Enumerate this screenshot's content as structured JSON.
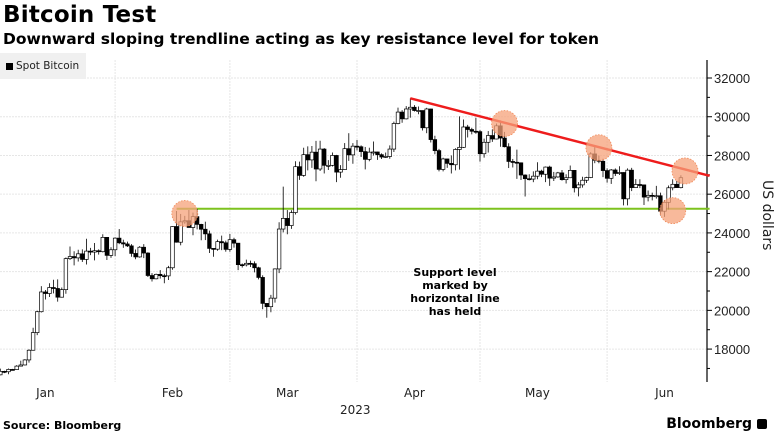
{
  "header": {
    "title": "Bitcoin Test",
    "subtitle": "Downward sloping trendline acting as key resistance level for token"
  },
  "footer": {
    "source": "Source: Bloomberg",
    "logo": "Bloomberg"
  },
  "chart_data": {
    "type": "candlestick",
    "title": "Bitcoin Test",
    "subtitle": "Downward sloping trendline acting as key resistance level for token",
    "legend": [
      {
        "name": "Spot Bitcoin",
        "color": "#000000"
      }
    ],
    "legend_placement": "top-left",
    "ylabel": "US dollars",
    "ylim": [
      16300,
      32930
    ],
    "yticks": [
      18000,
      20000,
      22000,
      24000,
      26000,
      28000,
      30000,
      32000
    ],
    "y_axis_side": "right",
    "xlim": [
      "2023-01-03",
      "2023-06-30"
    ],
    "xtick_labels": [
      "Jan",
      "Feb",
      "Mar",
      "Apr",
      "May",
      "Jun"
    ],
    "xtick_dates": [
      "2023-01-15",
      "2023-02-15",
      "2023-03-15",
      "2023-04-15",
      "2023-05-15",
      "2023-06-15"
    ],
    "year_label": "2023",
    "grid": true,
    "colors": {
      "up": "#ffffff",
      "down": "#000000",
      "resistance": "#ee1c1c",
      "support": "#7dc21e",
      "highlight": "#f5a27a"
    },
    "candles_columns": [
      "date",
      "open",
      "high",
      "low",
      "close"
    ],
    "candles": [
      [
        "2023-01-03",
        16680,
        16760,
        16600,
        16670
      ],
      [
        "2023-01-04",
        16670,
        16990,
        16650,
        16850
      ],
      [
        "2023-01-05",
        16850,
        16880,
        16760,
        16830
      ],
      [
        "2023-01-06",
        16830,
        17000,
        16700,
        16950
      ],
      [
        "2023-01-07",
        16950,
        16980,
        16900,
        16940
      ],
      [
        "2023-01-08",
        16940,
        17170,
        16920,
        17120
      ],
      [
        "2023-01-09",
        17120,
        17400,
        17100,
        17180
      ],
      [
        "2023-01-10",
        17180,
        17480,
        17150,
        17440
      ],
      [
        "2023-01-11",
        17440,
        17990,
        17300,
        17940
      ],
      [
        "2023-01-12",
        17940,
        19100,
        17920,
        18850
      ],
      [
        "2023-01-13",
        18850,
        19980,
        18720,
        19930
      ],
      [
        "2023-01-14",
        19930,
        21250,
        19890,
        20950
      ],
      [
        "2023-01-15",
        20950,
        21050,
        20560,
        20870
      ],
      [
        "2023-01-16",
        20870,
        21400,
        20690,
        21180
      ],
      [
        "2023-01-17",
        21180,
        21580,
        20880,
        21130
      ],
      [
        "2023-01-18",
        21130,
        21600,
        20450,
        20680
      ],
      [
        "2023-01-19",
        20680,
        21180,
        20660,
        21070
      ],
      [
        "2023-01-20",
        21070,
        22730,
        20860,
        22670
      ],
      [
        "2023-01-21",
        22670,
        23300,
        22600,
        22780
      ],
      [
        "2023-01-22",
        22780,
        23050,
        22320,
        22710
      ],
      [
        "2023-01-23",
        22710,
        23130,
        22520,
        22920
      ],
      [
        "2023-01-24",
        22920,
        23150,
        22500,
        22630
      ],
      [
        "2023-01-25",
        22630,
        23700,
        22370,
        23060
      ],
      [
        "2023-01-26",
        23060,
        23230,
        22850,
        23010
      ],
      [
        "2023-01-27",
        23010,
        23480,
        22580,
        23080
      ],
      [
        "2023-01-28",
        23080,
        23150,
        22880,
        23030
      ],
      [
        "2023-01-29",
        23030,
        23930,
        22990,
        23770
      ],
      [
        "2023-01-30",
        23770,
        23790,
        22600,
        22840
      ],
      [
        "2023-01-31",
        22840,
        23260,
        22710,
        23130
      ],
      [
        "2023-02-01",
        23130,
        23770,
        22800,
        23730
      ],
      [
        "2023-02-02",
        23730,
        24200,
        23420,
        23490
      ],
      [
        "2023-02-03",
        23490,
        23650,
        23230,
        23430
      ],
      [
        "2023-02-04",
        23430,
        23550,
        23270,
        23330
      ],
      [
        "2023-02-05",
        23330,
        23420,
        22770,
        22940
      ],
      [
        "2023-02-06",
        22940,
        23140,
        22640,
        22760
      ],
      [
        "2023-02-07",
        22760,
        23320,
        22720,
        23260
      ],
      [
        "2023-02-08",
        23260,
        23420,
        22700,
        22960
      ],
      [
        "2023-02-09",
        22960,
        23000,
        21720,
        21800
      ],
      [
        "2023-02-10",
        21800,
        21920,
        21490,
        21630
      ],
      [
        "2023-02-11",
        21630,
        21900,
        21600,
        21860
      ],
      [
        "2023-02-12",
        21860,
        22080,
        21640,
        21790
      ],
      [
        "2023-02-13",
        21790,
        21890,
        21400,
        21780
      ],
      [
        "2023-02-14",
        21780,
        22300,
        21570,
        22200
      ],
      [
        "2023-02-15",
        22200,
        24350,
        22100,
        24330
      ],
      [
        "2023-02-16",
        24330,
        25130,
        23500,
        23520
      ],
      [
        "2023-02-17",
        23520,
        24980,
        23360,
        24570
      ],
      [
        "2023-02-18",
        24570,
        24880,
        24470,
        24630
      ],
      [
        "2023-02-19",
        24630,
        25180,
        24280,
        24280
      ],
      [
        "2023-02-20",
        24280,
        25050,
        23880,
        24840
      ],
      [
        "2023-02-21",
        24840,
        25250,
        24180,
        24440
      ],
      [
        "2023-02-22",
        24440,
        24470,
        23620,
        24190
      ],
      [
        "2023-02-23",
        24190,
        24580,
        23630,
        23950
      ],
      [
        "2023-02-24",
        23950,
        24120,
        22960,
        23200
      ],
      [
        "2023-02-25",
        23200,
        23200,
        22770,
        23160
      ],
      [
        "2023-02-26",
        23160,
        23650,
        23080,
        23550
      ],
      [
        "2023-02-27",
        23550,
        23860,
        23110,
        23490
      ],
      [
        "2023-02-28",
        23490,
        23600,
        23030,
        23150
      ],
      [
        "2023-03-01",
        23150,
        23950,
        23030,
        23650
      ],
      [
        "2023-03-02",
        23650,
        23750,
        23240,
        23470
      ],
      [
        "2023-03-03",
        23470,
        23480,
        22080,
        22360
      ],
      [
        "2023-03-04",
        22360,
        22420,
        22210,
        22350
      ],
      [
        "2023-03-05",
        22350,
        22620,
        22270,
        22430
      ],
      [
        "2023-03-06",
        22430,
        22570,
        22240,
        22410
      ],
      [
        "2023-03-07",
        22410,
        22530,
        21960,
        22200
      ],
      [
        "2023-03-08",
        22200,
        22250,
        21600,
        21700
      ],
      [
        "2023-03-09",
        21700,
        21810,
        20060,
        20360
      ],
      [
        "2023-03-10",
        20360,
        20370,
        19620,
        20190
      ],
      [
        "2023-03-11",
        20190,
        20800,
        19900,
        20630
      ],
      [
        "2023-03-12",
        20630,
        22170,
        20400,
        22140
      ],
      [
        "2023-03-13",
        22140,
        24550,
        21920,
        24200
      ],
      [
        "2023-03-14",
        24200,
        26390,
        24030,
        24750
      ],
      [
        "2023-03-15",
        24750,
        25180,
        23930,
        24380
      ],
      [
        "2023-03-16",
        24380,
        25170,
        24210,
        25050
      ],
      [
        "2023-03-17",
        25050,
        27700,
        24950,
        27420
      ],
      [
        "2023-03-18",
        27420,
        27680,
        26740,
        26970
      ],
      [
        "2023-03-19",
        26970,
        28400,
        26900,
        28040
      ],
      [
        "2023-03-20",
        28040,
        28470,
        27230,
        27770
      ],
      [
        "2023-03-21",
        27770,
        28490,
        27360,
        28170
      ],
      [
        "2023-03-22",
        28170,
        28750,
        26670,
        27300
      ],
      [
        "2023-03-23",
        27300,
        28760,
        27200,
        28330
      ],
      [
        "2023-03-24",
        28330,
        28380,
        27070,
        27490
      ],
      [
        "2023-03-25",
        27490,
        27760,
        27250,
        27490
      ],
      [
        "2023-03-26",
        27490,
        28150,
        27430,
        28000
      ],
      [
        "2023-03-27",
        28000,
        28030,
        26620,
        27140
      ],
      [
        "2023-03-28",
        27140,
        27500,
        26850,
        27270
      ],
      [
        "2023-03-29",
        27270,
        28640,
        27250,
        28350
      ],
      [
        "2023-03-30",
        28350,
        29150,
        27720,
        28030
      ],
      [
        "2023-03-31",
        28030,
        28640,
        27570,
        28480
      ],
      [
        "2023-04-01",
        28480,
        28800,
        28260,
        28450
      ],
      [
        "2023-04-02",
        28450,
        28520,
        27920,
        28200
      ],
      [
        "2023-04-03",
        28200,
        28440,
        27280,
        27800
      ],
      [
        "2023-04-04",
        27800,
        28400,
        27700,
        28170
      ],
      [
        "2023-04-05",
        28170,
        28720,
        28000,
        28180
      ],
      [
        "2023-04-06",
        28180,
        28190,
        27770,
        28040
      ],
      [
        "2023-04-07",
        28040,
        28110,
        27820,
        27920
      ],
      [
        "2023-04-08",
        27920,
        28150,
        27870,
        27950
      ],
      [
        "2023-04-09",
        27950,
        28520,
        27830,
        28330
      ],
      [
        "2023-04-10",
        28330,
        29750,
        28180,
        29650
      ],
      [
        "2023-04-11",
        29650,
        30470,
        29610,
        30240
      ],
      [
        "2023-04-12",
        30240,
        30340,
        29690,
        29890
      ],
      [
        "2023-04-13",
        29890,
        30550,
        29860,
        30400
      ],
      [
        "2023-04-14",
        30400,
        30950,
        29950,
        30490
      ],
      [
        "2023-04-15",
        30490,
        30600,
        30270,
        30320
      ],
      [
        "2023-04-16",
        30320,
        30530,
        30130,
        30320
      ],
      [
        "2023-04-17",
        30320,
        30320,
        29290,
        29430
      ],
      [
        "2023-04-18",
        29430,
        30460,
        29150,
        30400
      ],
      [
        "2023-04-19",
        30400,
        30410,
        28670,
        28820
      ],
      [
        "2023-04-20",
        28820,
        29020,
        28060,
        28250
      ],
      [
        "2023-04-21",
        28250,
        28340,
        27180,
        27280
      ],
      [
        "2023-04-22",
        27280,
        27880,
        27180,
        27820
      ],
      [
        "2023-04-23",
        27820,
        27830,
        27360,
        27590
      ],
      [
        "2023-04-24",
        27590,
        28000,
        27070,
        27520
      ],
      [
        "2023-04-25",
        27520,
        28370,
        27230,
        28310
      ],
      [
        "2023-04-26",
        28310,
        30020,
        27270,
        28420
      ],
      [
        "2023-04-27",
        28420,
        29860,
        28390,
        29470
      ],
      [
        "2023-04-28",
        29470,
        29580,
        28930,
        29340
      ],
      [
        "2023-04-29",
        29340,
        29430,
        29090,
        29250
      ],
      [
        "2023-04-30",
        29250,
        29950,
        29120,
        29230
      ],
      [
        "2023-05-01",
        29230,
        29310,
        27680,
        28090
      ],
      [
        "2023-05-02",
        28090,
        28870,
        27890,
        28680
      ],
      [
        "2023-05-03",
        28680,
        29260,
        28150,
        29030
      ],
      [
        "2023-05-04",
        29030,
        29350,
        28700,
        28850
      ],
      [
        "2023-05-05",
        28850,
        29650,
        28830,
        29530
      ],
      [
        "2023-05-06",
        29530,
        29810,
        28450,
        28900
      ],
      [
        "2023-05-07",
        28900,
        29220,
        28420,
        28450
      ],
      [
        "2023-05-08",
        28450,
        28630,
        27350,
        27690
      ],
      [
        "2023-05-09",
        27690,
        27820,
        27380,
        27650
      ],
      [
        "2023-05-10",
        27650,
        28300,
        26790,
        27620
      ],
      [
        "2023-05-11",
        27620,
        27640,
        26730,
        26990
      ],
      [
        "2023-05-12",
        26990,
        27020,
        25880,
        26800
      ],
      [
        "2023-05-13",
        26800,
        27030,
        26710,
        26780
      ],
      [
        "2023-05-14",
        26780,
        27180,
        26620,
        26930
      ],
      [
        "2023-05-15",
        26930,
        27650,
        26770,
        27190
      ],
      [
        "2023-05-16",
        27190,
        27260,
        26880,
        27030
      ],
      [
        "2023-05-17",
        27030,
        27430,
        26620,
        27400
      ],
      [
        "2023-05-18",
        27400,
        27470,
        26430,
        26830
      ],
      [
        "2023-05-19",
        26830,
        27150,
        26680,
        26890
      ],
      [
        "2023-05-20",
        26890,
        27150,
        26850,
        27100
      ],
      [
        "2023-05-21",
        27100,
        27250,
        26700,
        26750
      ],
      [
        "2023-05-22",
        26750,
        27030,
        26550,
        26850
      ],
      [
        "2023-05-23",
        26850,
        27480,
        26830,
        27230
      ],
      [
        "2023-05-24",
        27230,
        27230,
        26090,
        26330
      ],
      [
        "2023-05-25",
        26330,
        26620,
        25890,
        26480
      ],
      [
        "2023-05-26",
        26480,
        26900,
        26340,
        26720
      ],
      [
        "2023-05-27",
        26720,
        26900,
        26580,
        26860
      ],
      [
        "2023-05-28",
        26860,
        28170,
        26830,
        28080
      ],
      [
        "2023-05-29",
        28080,
        28430,
        27600,
        27750
      ],
      [
        "2023-05-30",
        27750,
        28000,
        27600,
        27700
      ],
      [
        "2023-05-31",
        27700,
        27830,
        26880,
        27220
      ],
      [
        "2023-06-01",
        27220,
        27330,
        26600,
        26820
      ],
      [
        "2023-06-02",
        26820,
        27300,
        26530,
        27250
      ],
      [
        "2023-06-03",
        27250,
        27330,
        26940,
        27070
      ],
      [
        "2023-06-04",
        27070,
        27440,
        26990,
        27120
      ],
      [
        "2023-06-05",
        27120,
        27130,
        25420,
        25760
      ],
      [
        "2023-06-06",
        25760,
        27330,
        25420,
        27240
      ],
      [
        "2023-06-07",
        27240,
        27360,
        26160,
        26340
      ],
      [
        "2023-06-08",
        26340,
        26780,
        26320,
        26500
      ],
      [
        "2023-06-09",
        26500,
        26770,
        26310,
        26480
      ],
      [
        "2023-06-10",
        26480,
        26500,
        25440,
        25850
      ],
      [
        "2023-06-11",
        25850,
        26190,
        25630,
        25940
      ],
      [
        "2023-06-12",
        25940,
        26080,
        25680,
        25900
      ],
      [
        "2023-06-13",
        25900,
        26430,
        25770,
        25920
      ],
      [
        "2023-06-14",
        25920,
        26080,
        24900,
        25120
      ],
      [
        "2023-06-15",
        25120,
        25700,
        24830,
        25580
      ],
      [
        "2023-06-16",
        25580,
        26450,
        25210,
        26330
      ],
      [
        "2023-06-17",
        26330,
        26770,
        26200,
        26510
      ],
      [
        "2023-06-18",
        26510,
        26690,
        26320,
        26340
      ],
      [
        "2023-06-19",
        26340,
        26980,
        26300,
        26850
      ]
    ],
    "annotations": {
      "resistance_line": {
        "start": [
          "2023-04-14",
          30950
        ],
        "end": [
          "2023-06-26",
          26950
        ]
      },
      "support_line": {
        "start": [
          "2023-02-16",
          25250
        ],
        "end": [
          "2023-06-26",
          25250
        ],
        "value": 25250
      },
      "highlight_circles": [
        [
          "2023-02-18",
          25000
        ],
        [
          "2023-05-07",
          29650
        ],
        [
          "2023-05-30",
          28400
        ],
        [
          "2023-06-20",
          27200
        ],
        [
          "2023-06-17",
          25150
        ]
      ],
      "note": [
        "Support level",
        "marked by",
        "horizontal line",
        "has held"
      ]
    }
  }
}
